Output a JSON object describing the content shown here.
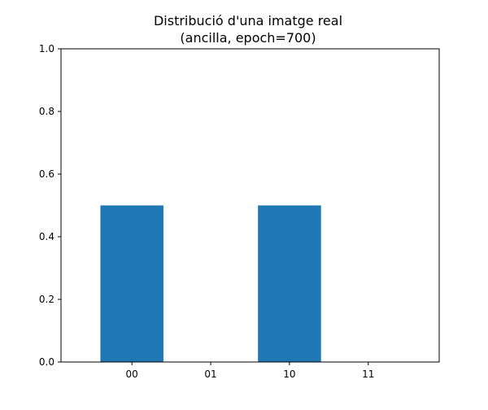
{
  "chart_data": {
    "type": "bar",
    "title": "Distribució d'una imatge real",
    "subtitle": "(ancilla, epoch=700)",
    "xlabel": "",
    "ylabel": "",
    "categories": [
      "00",
      "01",
      "10",
      "11"
    ],
    "values": [
      0.5,
      0.0,
      0.5,
      0.0
    ],
    "ylim": [
      0,
      1.0
    ],
    "yticks": [
      "0.0",
      "0.2",
      "0.4",
      "0.6",
      "0.8",
      "1.0"
    ],
    "grid": false,
    "legend": "none",
    "bar_color": "#1f77b4"
  }
}
